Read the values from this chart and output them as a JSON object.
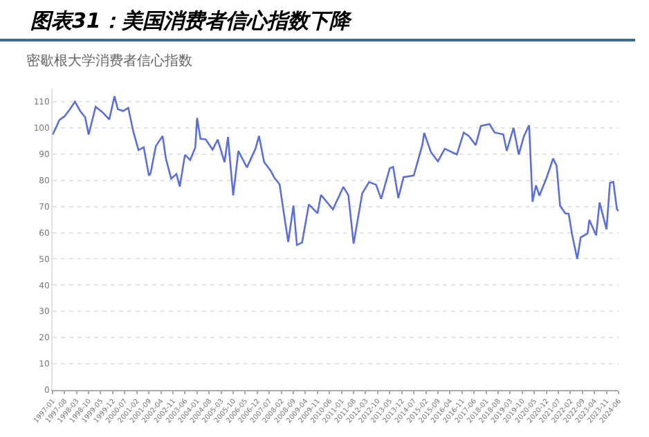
{
  "chart_data": {
    "type": "line",
    "title": "图表31：美国消费者信心指数下降",
    "subtitle": "密歇根大学消费者信心指数",
    "x": [
      "1997-01",
      "1997-03",
      "1997-05",
      "1997-08",
      "1997-11",
      "1998-02",
      "1998-05",
      "1998-08",
      "1998-10",
      "1999-02",
      "1999-06",
      "1999-10",
      "2000-01",
      "2000-03",
      "2000-06",
      "2000-09",
      "2000-12",
      "2001-03",
      "2001-06",
      "2001-09",
      "2001-10",
      "2002-01",
      "2002-05",
      "2002-07",
      "2002-10",
      "2003-01",
      "2003-03",
      "2003-06",
      "2003-09",
      "2003-12",
      "2004-01",
      "2004-03",
      "2004-06",
      "2004-10",
      "2005-01",
      "2005-05",
      "2005-07",
      "2005-10",
      "2006-01",
      "2006-06",
      "2006-11",
      "2007-01",
      "2007-04",
      "2007-08",
      "2007-10",
      "2008-01",
      "2008-03",
      "2008-06",
      "2008-09",
      "2008-11",
      "2009-02",
      "2009-06",
      "2009-11",
      "2010-01",
      "2010-08",
      "2011-02",
      "2011-05",
      "2011-08",
      "2012-01",
      "2012-05",
      "2012-09",
      "2012-12",
      "2013-05",
      "2013-07",
      "2013-10",
      "2014-01",
      "2014-07",
      "2014-12",
      "2015-01",
      "2015-05",
      "2015-09",
      "2016-01",
      "2016-08",
      "2016-12",
      "2017-03",
      "2017-07",
      "2017-10",
      "2018-03",
      "2018-06",
      "2018-11",
      "2019-01",
      "2019-05",
      "2019-08",
      "2019-11",
      "2020-02",
      "2020-04",
      "2020-06",
      "2020-08",
      "2020-12",
      "2021-04",
      "2021-06",
      "2021-08",
      "2021-11",
      "2022-01",
      "2022-03",
      "2022-06",
      "2022-08",
      "2022-12",
      "2023-01",
      "2023-05",
      "2023-07",
      "2023-11",
      "2024-01",
      "2024-03",
      "2024-05",
      "2024-06"
    ],
    "values": [
      97.4,
      100,
      103,
      104.4,
      107,
      110,
      106.5,
      104,
      97.4,
      108,
      106,
      103.2,
      112,
      107.1,
      106.4,
      107.6,
      98.4,
      91.5,
      92.6,
      81.8,
      82.7,
      93,
      96.9,
      88,
      80.6,
      82.4,
      77.6,
      89.7,
      87.7,
      92.6,
      103.8,
      95.8,
      95.6,
      91.7,
      95.5,
      86.9,
      96.5,
      74.2,
      91.2,
      84.9,
      92.1,
      96.9,
      87,
      83.4,
      80.9,
      78.4,
      69.5,
      56.4,
      70.3,
      55.3,
      56.3,
      70.8,
      67.4,
      74.4,
      68.9,
      77.5,
      74.3,
      55.8,
      75,
      79.3,
      78.3,
      72.9,
      84.5,
      85.1,
      73.2,
      81.2,
      81.8,
      93.6,
      98.1,
      90.7,
      87.2,
      92,
      89.8,
      98.2,
      96.9,
      93.4,
      100.7,
      101.4,
      98.2,
      97.5,
      91.2,
      100,
      89.8,
      96.8,
      101,
      71.8,
      78.1,
      74.1,
      80.7,
      88.3,
      85.5,
      70.3,
      67.4,
      67.2,
      59.4,
      50,
      58.2,
      59.7,
      64.9,
      59,
      71.5,
      61.3,
      79,
      79.4,
      69.1,
      68.2
    ],
    "color": "#5b6fdc",
    "xlim": [
      "1997-01",
      "2024-06"
    ],
    "xticks": [
      {
        "value": "1997-01",
        "label": "1997-01"
      },
      {
        "value": "1997-08",
        "label": "1997-08"
      },
      {
        "value": "1998-03",
        "label": "1998-03"
      },
      {
        "value": "1998-10",
        "label": "1998-10"
      },
      {
        "value": "1999-05",
        "label": "1999-05"
      },
      {
        "value": "1999-12",
        "label": "1999-12"
      },
      {
        "value": "2000-07",
        "label": "2000-07"
      },
      {
        "value": "2001-02",
        "label": "2001-02"
      },
      {
        "value": "2001-09",
        "label": "2001-09"
      },
      {
        "value": "2002-04",
        "label": "2002-04"
      },
      {
        "value": "2002-11",
        "label": "2002-11"
      },
      {
        "value": "2003-06",
        "label": "2003-06"
      },
      {
        "value": "2004-01",
        "label": "2004-01"
      },
      {
        "value": "2004-08",
        "label": "2004-08"
      },
      {
        "value": "2005-03",
        "label": "2005-03"
      },
      {
        "value": "2005-10",
        "label": "2005-10"
      },
      {
        "value": "2006-05",
        "label": "2006-05"
      },
      {
        "value": "2006-12",
        "label": "2006-12"
      },
      {
        "value": "2007-07",
        "label": "2007-07"
      },
      {
        "value": "2008-02",
        "label": "2008-02"
      },
      {
        "value": "2008-09",
        "label": "2008-09"
      },
      {
        "value": "2009-04",
        "label": "2009-04"
      },
      {
        "value": "2009-11",
        "label": "2009-11"
      },
      {
        "value": "2010-06",
        "label": "2010-06"
      },
      {
        "value": "2011-01",
        "label": "2011-01"
      },
      {
        "value": "2011-08",
        "label": "2011-08"
      },
      {
        "value": "2012-03",
        "label": "2012-03"
      },
      {
        "value": "2012-10",
        "label": "2012-10"
      },
      {
        "value": "2013-05",
        "label": "2013-05"
      },
      {
        "value": "2013-12",
        "label": "2013-12"
      },
      {
        "value": "2014-07",
        "label": "2014-07"
      },
      {
        "value": "2015-02",
        "label": "2015-02"
      },
      {
        "value": "2015-09",
        "label": "2015-09"
      },
      {
        "value": "2016-04",
        "label": "2016-04"
      },
      {
        "value": "2016-11",
        "label": "2016-11"
      },
      {
        "value": "2017-06",
        "label": "2017-06"
      },
      {
        "value": "2018-01",
        "label": "2018-01"
      },
      {
        "value": "2018-08",
        "label": "2018-08"
      },
      {
        "value": "2019-03",
        "label": "2019-03"
      },
      {
        "value": "2019-10",
        "label": "2019-10"
      },
      {
        "value": "2020-05",
        "label": "2020-05"
      },
      {
        "value": "2020-12",
        "label": "2020-12"
      },
      {
        "value": "2021-07",
        "label": "2021-07"
      },
      {
        "value": "2022-02",
        "label": "2022-02"
      },
      {
        "value": "2022-09",
        "label": "2022-09"
      },
      {
        "value": "2023-04",
        "label": "2023-04"
      },
      {
        "value": "2023-11",
        "label": "2023-11"
      },
      {
        "value": "2024-06",
        "label": "2024-06"
      }
    ],
    "ylim": [
      0,
      115
    ],
    "yticks": [
      0,
      10,
      20,
      30,
      40,
      50,
      60,
      70,
      80,
      90,
      100,
      110
    ],
    "grid": "y",
    "marker": "none",
    "line_style": "solid"
  }
}
